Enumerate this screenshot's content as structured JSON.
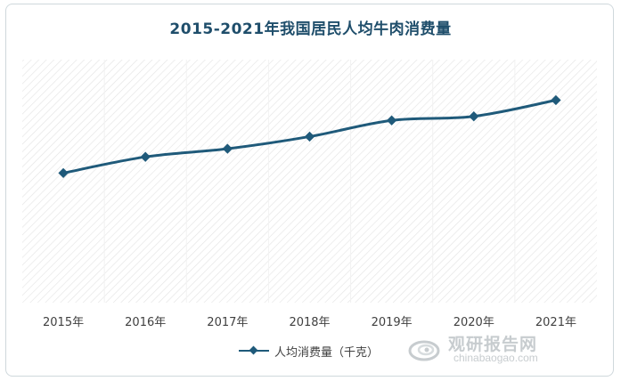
{
  "chart_data": {
    "type": "line",
    "title": "2015-2021年我国居民人均牛肉消费量",
    "categories": [
      "2015年",
      "2016年",
      "2017年",
      "2018年",
      "2019年",
      "2020年",
      "2021年"
    ],
    "series": [
      {
        "name": "人均消费量（千克）",
        "values": [
          1.6,
          1.8,
          1.9,
          2.05,
          2.25,
          2.3,
          2.5
        ]
      }
    ],
    "ylim": [
      0,
      3.0
    ],
    "grid": true,
    "legend": "bottom",
    "colors": {
      "line": "#1f5a7a",
      "title": "#1f4e6b",
      "hatch": "#e3e3e3"
    }
  },
  "watermark": {
    "name": "观研报告网",
    "url": "chinabaogao.com",
    "icon": "chinabaogao-logo-icon"
  }
}
